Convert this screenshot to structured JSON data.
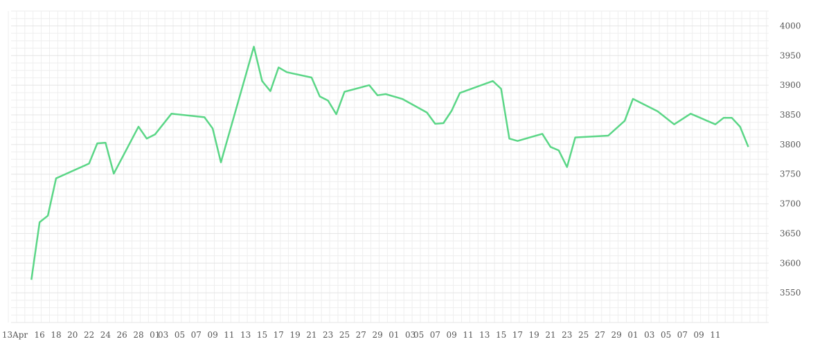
{
  "chart_data": {
    "type": "line",
    "title": "",
    "xlabel": "",
    "ylabel": "",
    "ylim": [
      3500,
      4025
    ],
    "y_ticks": [
      3550,
      3600,
      3650,
      3700,
      3750,
      3800,
      3850,
      3900,
      3950,
      4000
    ],
    "y_axis_position": "right",
    "grid": true,
    "legend": "none",
    "line_color": "#5ad686",
    "grid_color": "#eeeeee",
    "x_tick_labels": [
      "13Apr",
      "16",
      "18",
      "20",
      "22",
      "24",
      "26",
      "28",
      "01",
      "03",
      "05",
      "07",
      "09",
      "11",
      "13",
      "15",
      "17",
      "19",
      "21",
      "23",
      "25",
      "27",
      "29",
      "01",
      "03",
      "05",
      "07",
      "09",
      "11",
      "13",
      "15",
      "17",
      "19",
      "21",
      "23",
      "25",
      "27",
      "29",
      "01",
      "03",
      "05",
      "07",
      "09",
      "11"
    ],
    "series": [
      {
        "x": [
          "2020-04-15",
          "2020-04-16",
          "2020-04-17",
          "2020-04-18",
          "2020-04-22",
          "2020-04-23",
          "2020-04-24",
          "2020-04-25",
          "2020-04-28",
          "2020-04-29",
          "2020-04-30",
          "2020-05-02",
          "2020-05-06",
          "2020-05-07",
          "2020-05-08",
          "2020-05-12",
          "2020-05-13",
          "2020-05-14",
          "2020-05-15",
          "2020-05-16",
          "2020-05-19",
          "2020-05-20",
          "2020-05-21",
          "2020-05-22",
          "2020-05-23",
          "2020-05-26",
          "2020-05-27",
          "2020-05-28",
          "2020-05-30",
          "2020-06-02",
          "2020-06-03",
          "2020-06-04",
          "2020-06-05",
          "2020-06-06",
          "2020-06-10",
          "2020-06-11",
          "2020-06-12",
          "2020-06-13",
          "2020-06-16",
          "2020-06-17",
          "2020-06-18",
          "2020-06-19",
          "2020-06-20",
          "2020-06-24",
          "2020-06-26",
          "2020-06-27",
          "2020-06-30",
          "2020-07-02",
          "2020-07-04",
          "2020-07-07",
          "2020-07-08",
          "2020-07-09",
          "2020-07-10",
          "2020-07-11"
        ],
        "values": [
          3572,
          3669,
          3680,
          3743,
          3768,
          3802,
          3803,
          3751,
          3830,
          3810,
          3817,
          3852,
          3846,
          3827,
          3770,
          3965,
          3907,
          3890,
          3930,
          3922,
          3913,
          3881,
          3874,
          3851,
          3889,
          3900,
          3883,
          3885,
          3877,
          3854,
          3835,
          3836,
          3857,
          3887,
          3907,
          3894,
          3810,
          3806,
          3818,
          3796,
          3790,
          3762,
          3812,
          3815,
          3840,
          3877,
          3856,
          3834,
          3852,
          3834,
          3845,
          3845,
          3830,
          3796
        ]
      }
    ]
  }
}
